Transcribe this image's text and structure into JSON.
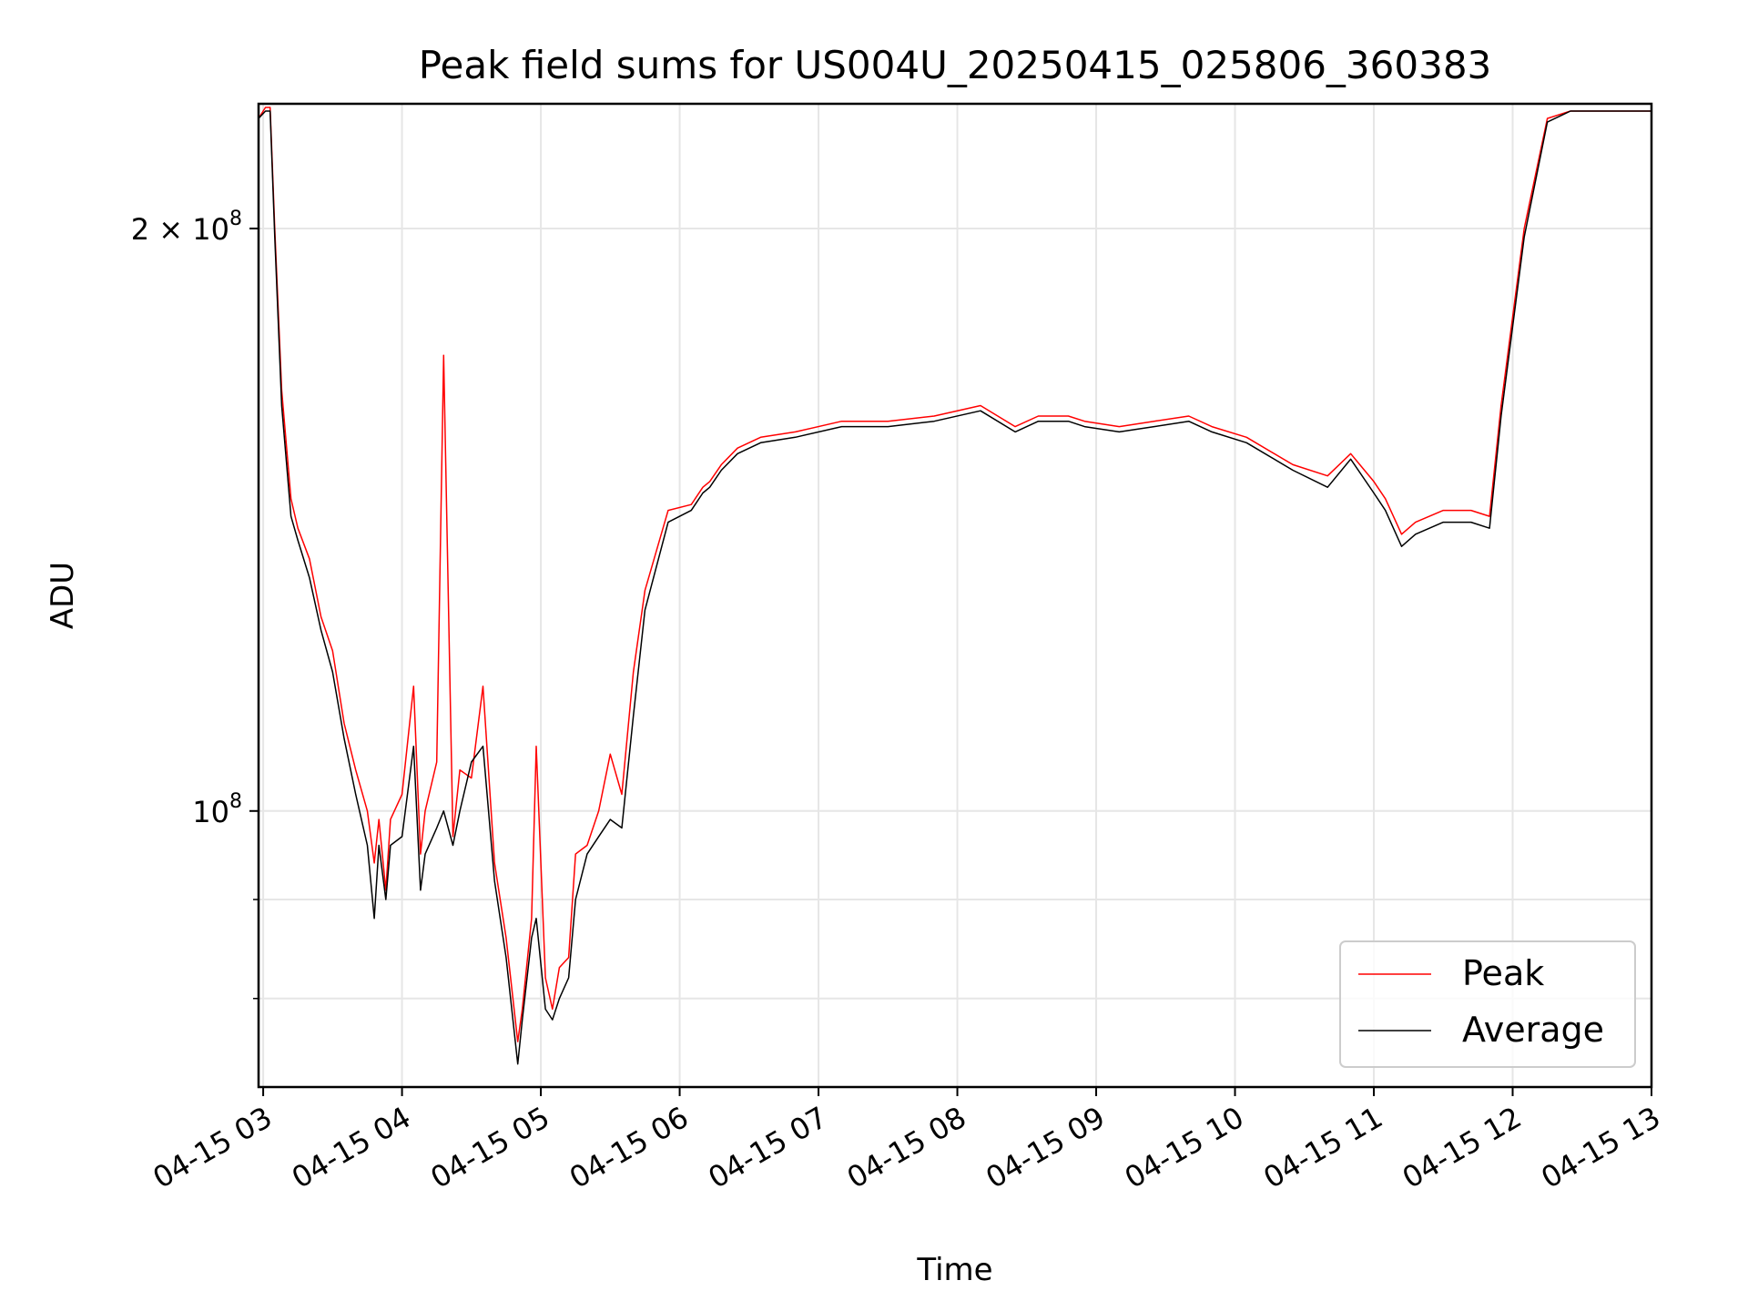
{
  "chart_data": {
    "type": "line",
    "title": "Peak field sums for US004U_20250415_025806_360383",
    "xlabel": "Time",
    "ylabel": "ADU",
    "x_scale": "time",
    "y_scale": "log",
    "xlim": [
      "04-15 02:58",
      "04-15 13:00"
    ],
    "ylim": [
      72000000,
      232000000
    ],
    "x_ticks": [
      "04-15 03",
      "04-15 04",
      "04-15 05",
      "04-15 06",
      "04-15 07",
      "04-15 08",
      "04-15 09",
      "04-15 10",
      "04-15 11",
      "04-15 12",
      "04-15 13"
    ],
    "y_ticks": [
      {
        "value": 200000000,
        "label_base": "2 × 10",
        "label_exp": "8"
      },
      {
        "value": 100000000,
        "label_base": "10",
        "label_exp": "8"
      }
    ],
    "grid": true,
    "legend": {
      "placement": "lower-right"
    },
    "x": [
      "04-15 02:58",
      "04-15 03:01",
      "04-15 03:03",
      "04-15 03:05",
      "04-15 03:08",
      "04-15 03:12",
      "04-15 03:15",
      "04-15 03:20",
      "04-15 03:25",
      "04-15 03:30",
      "04-15 03:35",
      "04-15 03:40",
      "04-15 03:45",
      "04-15 03:48",
      "04-15 03:50",
      "04-15 03:53",
      "04-15 03:55",
      "04-15 04:00",
      "04-15 04:05",
      "04-15 04:08",
      "04-15 04:10",
      "04-15 04:15",
      "04-15 04:18",
      "04-15 04:22",
      "04-15 04:25",
      "04-15 04:30",
      "04-15 04:35",
      "04-15 04:40",
      "04-15 04:45",
      "04-15 04:50",
      "04-15 04:52",
      "04-15 04:56",
      "04-15 04:58",
      "04-15 05:02",
      "04-15 05:05",
      "04-15 05:08",
      "04-15 05:12",
      "04-15 05:15",
      "04-15 05:20",
      "04-15 05:25",
      "04-15 05:30",
      "04-15 05:35",
      "04-15 05:40",
      "04-15 05:45",
      "04-15 05:55",
      "04-15 06:05",
      "04-15 06:10",
      "04-15 06:13",
      "04-15 06:18",
      "04-15 06:25",
      "04-15 06:35",
      "04-15 06:50",
      "04-15 07:10",
      "04-15 07:30",
      "04-15 07:50",
      "04-15 08:10",
      "04-15 08:25",
      "04-15 08:35",
      "04-15 08:48",
      "04-15 08:55",
      "04-15 09:10",
      "04-15 09:25",
      "04-15 09:40",
      "04-15 09:50",
      "04-15 10:05",
      "04-15 10:25",
      "04-15 10:40",
      "04-15 10:50",
      "04-15 11:00",
      "04-15 11:05",
      "04-15 11:12",
      "04-15 11:18",
      "04-15 11:30",
      "04-15 11:42",
      "04-15 11:50",
      "04-15 11:55",
      "04-15 12:05",
      "04-15 12:15",
      "04-15 12:25",
      "04-15 12:30",
      "04-15 12:35",
      "04-15 12:40",
      "04-15 12:45",
      "04-15 12:50",
      "04-15 12:55",
      "04-15 13:00"
    ],
    "series": [
      {
        "name": "Peak",
        "color": "#ff0000",
        "values": [
          228000000,
          231000000,
          231000000,
          200000000,
          165000000,
          145000000,
          140000000,
          135000000,
          126000000,
          121000000,
          111000000,
          105000000,
          100000000,
          94000000,
          99000000,
          91000000,
          99000000,
          102000000,
          116000000,
          95000000,
          100000000,
          106000000,
          172000000,
          97000000,
          105000000,
          104000000,
          116000000,
          94000000,
          86000000,
          76000000,
          79000000,
          88000000,
          108000000,
          82000000,
          79000000,
          83000000,
          84000000,
          95000000,
          96000000,
          100000000,
          107000000,
          102000000,
          118000000,
          130000000,
          143000000,
          144000000,
          147000000,
          148000000,
          151000000,
          154000000,
          156000000,
          157000000,
          159000000,
          159000000,
          160000000,
          162000000,
          158000000,
          160000000,
          160000000,
          159000000,
          158000000,
          159000000,
          160000000,
          158000000,
          156000000,
          151000000,
          149000000,
          153000000,
          148000000,
          145000000,
          139000000,
          141000000,
          143000000,
          143000000,
          142000000,
          162000000,
          200000000,
          228000000,
          230000000,
          230000000,
          230000000,
          230000000,
          230000000,
          230000000,
          230000000,
          230000000
        ]
      },
      {
        "name": "Average",
        "color": "#000000",
        "values": [
          228000000,
          230000000,
          230000000,
          198000000,
          162000000,
          142000000,
          138000000,
          132000000,
          124000000,
          118000000,
          109000000,
          102000000,
          96000000,
          88000000,
          96000000,
          90000000,
          96000000,
          97000000,
          108000000,
          91000000,
          95000000,
          98000000,
          100000000,
          96000000,
          100000000,
          106000000,
          108000000,
          92000000,
          84000000,
          74000000,
          78000000,
          86000000,
          88000000,
          79000000,
          78000000,
          80000000,
          82000000,
          90000000,
          95000000,
          97000000,
          99000000,
          98000000,
          112000000,
          127000000,
          141000000,
          143000000,
          146000000,
          147000000,
          150000000,
          153000000,
          155000000,
          156000000,
          158000000,
          158000000,
          159000000,
          161000000,
          157000000,
          159000000,
          159000000,
          158000000,
          157000000,
          158000000,
          159000000,
          157000000,
          155000000,
          150000000,
          147000000,
          152000000,
          146000000,
          143000000,
          137000000,
          139000000,
          141000000,
          141000000,
          140000000,
          160000000,
          198000000,
          227000000,
          230000000,
          230000000,
          230000000,
          230000000,
          230000000,
          230000000,
          230000000,
          230000000
        ]
      }
    ]
  }
}
